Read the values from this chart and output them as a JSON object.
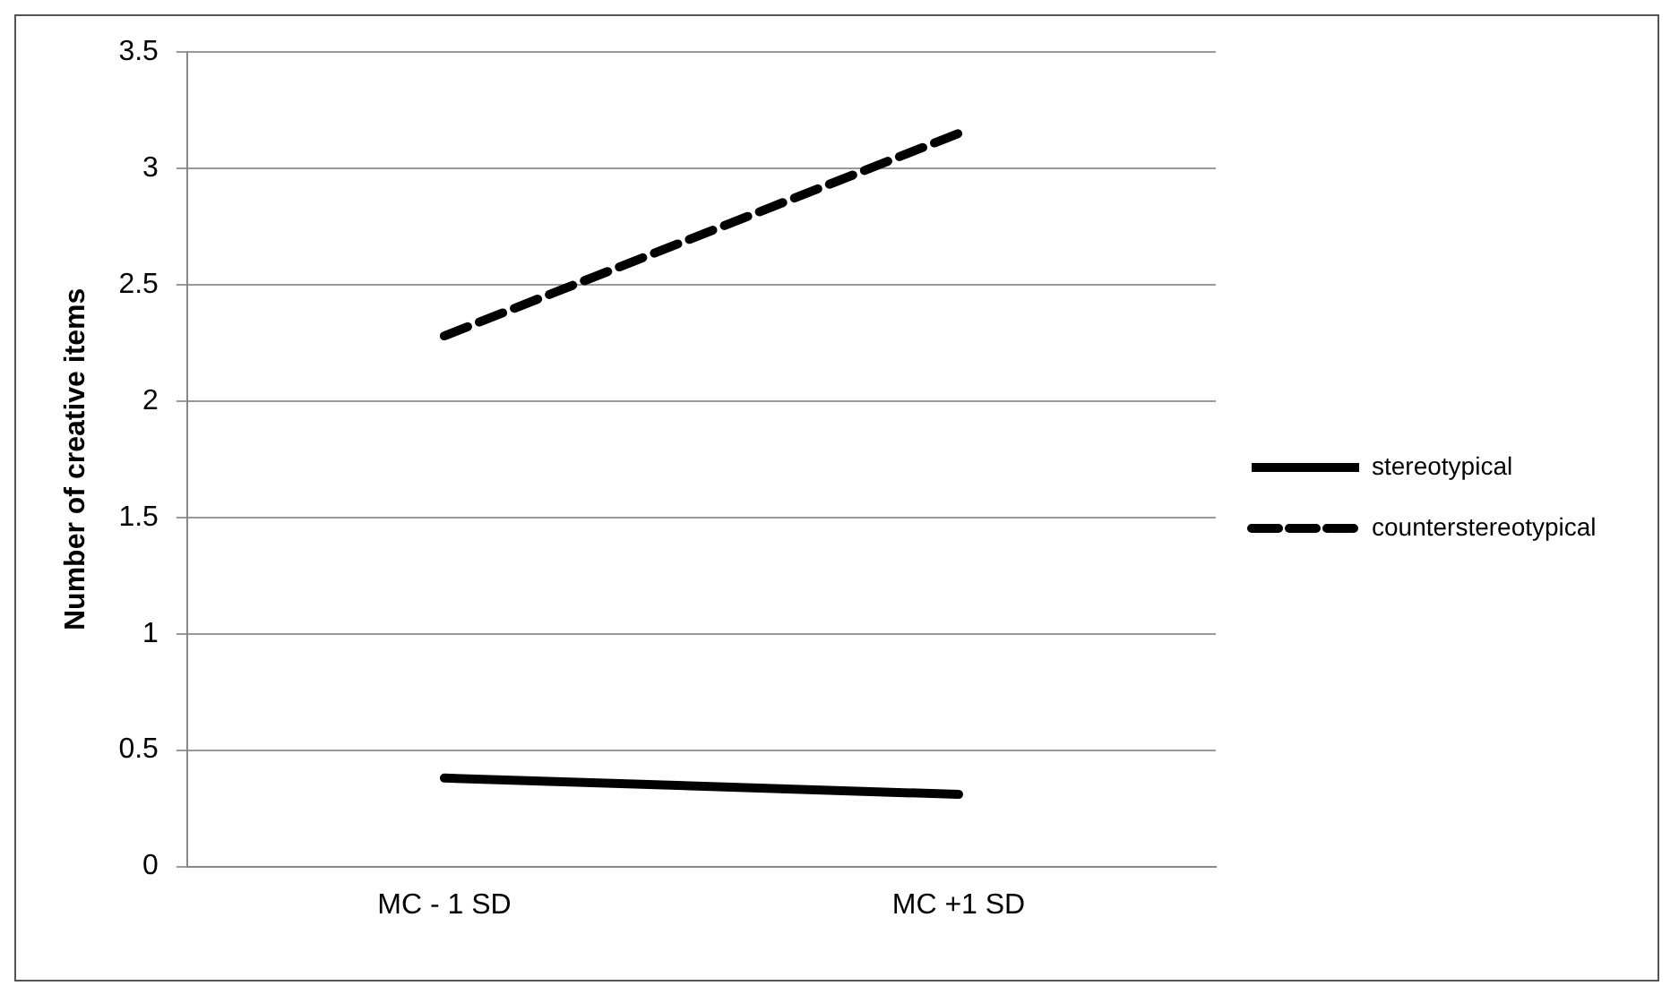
{
  "chart_data": {
    "type": "line",
    "ylabel": "Number of creative items",
    "categories": [
      "MC - 1 SD",
      "MC +1 SD"
    ],
    "series": [
      {
        "name": "stereotypical",
        "color": "#000000",
        "values": [
          0.38,
          0.31
        ],
        "line_style": "solid"
      },
      {
        "name": "counterstereotypical",
        "color": "#000000",
        "values": [
          2.28,
          3.15
        ],
        "line_style": "dashed"
      }
    ],
    "ylim": [
      0,
      3.5
    ],
    "yticks": [
      0,
      0.5,
      1,
      1.5,
      2,
      2.5,
      3,
      3.5
    ],
    "grid": "y",
    "legend": "right",
    "marker": "none"
  }
}
